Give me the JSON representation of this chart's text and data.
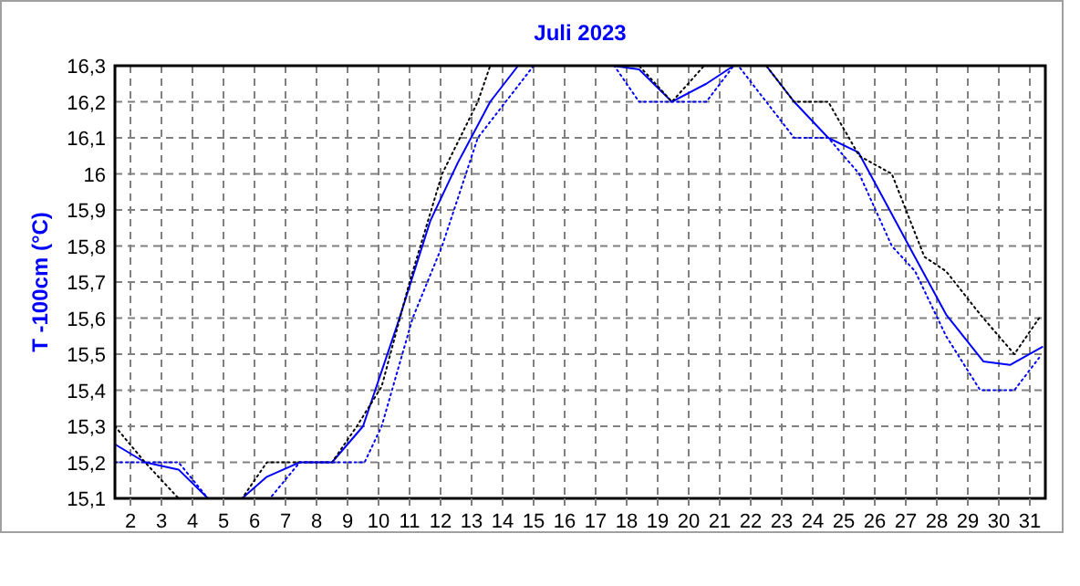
{
  "chart_data": {
    "type": "line",
    "title": "Juli 2023",
    "ylabel": "T -100cm (°C)",
    "xlim": [
      1.5,
      31.5
    ],
    "xticks": [
      2,
      3,
      4,
      5,
      6,
      7,
      8,
      9,
      10,
      11,
      12,
      13,
      14,
      15,
      16,
      17,
      18,
      19,
      20,
      21,
      22,
      23,
      24,
      25,
      26,
      27,
      28,
      29,
      30,
      31
    ],
    "ylim": [
      15.1,
      16.3
    ],
    "yticks": [
      {
        "value": 15.1,
        "label": "15,1"
      },
      {
        "value": 15.2,
        "label": "15,2"
      },
      {
        "value": 15.3,
        "label": "15,3"
      },
      {
        "value": 15.4,
        "label": "15,4"
      },
      {
        "value": 15.5,
        "label": "15,5"
      },
      {
        "value": 15.6,
        "label": "15,6"
      },
      {
        "value": 15.7,
        "label": "15,7"
      },
      {
        "value": 15.8,
        "label": "15,8"
      },
      {
        "value": 15.9,
        "label": "15,9"
      },
      {
        "value": 16,
        "label": "16"
      },
      {
        "value": 16.1,
        "label": "16,1"
      },
      {
        "value": 16.2,
        "label": "16,2"
      },
      {
        "value": 16.3,
        "label": "16,3"
      }
    ],
    "grid": true,
    "series": [
      {
        "color": "#0000ff",
        "line_style": "solid",
        "x": [
          1.5,
          2.47,
          3.55,
          4.5,
          5.6,
          6.4,
          7.46,
          8.5,
          9.5,
          10.6,
          11.67,
          12.55,
          13.6,
          14.5,
          17.55,
          18.4,
          19.46,
          20.57,
          21.45,
          22.5,
          23.4,
          24.5,
          25.47,
          26.35,
          27.23,
          28.3,
          29.5,
          30.36,
          31.4
        ],
        "values": [
          15.25,
          15.2,
          15.18,
          15.1,
          15.1,
          15.16,
          15.2,
          15.2,
          15.3,
          15.58,
          15.87,
          16.03,
          16.2,
          16.3,
          16.3,
          16.29,
          16.2,
          16.25,
          16.3,
          16.3,
          16.2,
          16.1,
          16.06,
          15.92,
          15.78,
          15.61,
          15.48,
          15.47,
          15.52
        ]
      },
      {
        "color": "#000000",
        "line_style": "dotted",
        "x": [
          1.5,
          2.47,
          3.55,
          5.6,
          6.4,
          8.5,
          9.3,
          10.1,
          11.0,
          12.05,
          13.2,
          13.6,
          18.4,
          19.46,
          20.5,
          22.5,
          23.4,
          24.5,
          25.5,
          26.55,
          27.6,
          28.3,
          29.4,
          30.5,
          31.3
        ],
        "values": [
          15.3,
          15.2,
          15.1,
          15.1,
          15.2,
          15.2,
          15.3,
          15.41,
          15.7,
          16.0,
          16.2,
          16.3,
          16.3,
          16.2,
          16.3,
          16.3,
          16.2,
          16.2,
          16.05,
          16.0,
          15.77,
          15.73,
          15.61,
          15.5,
          15.6
        ]
      },
      {
        "color": "#0000ff",
        "line_style": "dotted",
        "x": [
          1.5,
          3.55,
          4.5,
          6.5,
          7.46,
          9.55,
          10.1,
          11.1,
          12.05,
          13.2,
          14.1,
          15.0,
          17.6,
          18.4,
          20.57,
          21.45,
          21.6,
          23.4,
          24.5,
          25.5,
          26.55,
          27.3,
          28.3,
          29.4,
          30.5,
          31.3
        ],
        "values": [
          15.2,
          15.2,
          15.1,
          15.1,
          15.2,
          15.2,
          15.3,
          15.6,
          15.8,
          16.1,
          16.2,
          16.3,
          16.3,
          16.2,
          16.2,
          16.3,
          16.3,
          16.1,
          16.1,
          16.0,
          15.8,
          15.73,
          15.55,
          15.4,
          15.4,
          15.49
        ]
      }
    ]
  }
}
